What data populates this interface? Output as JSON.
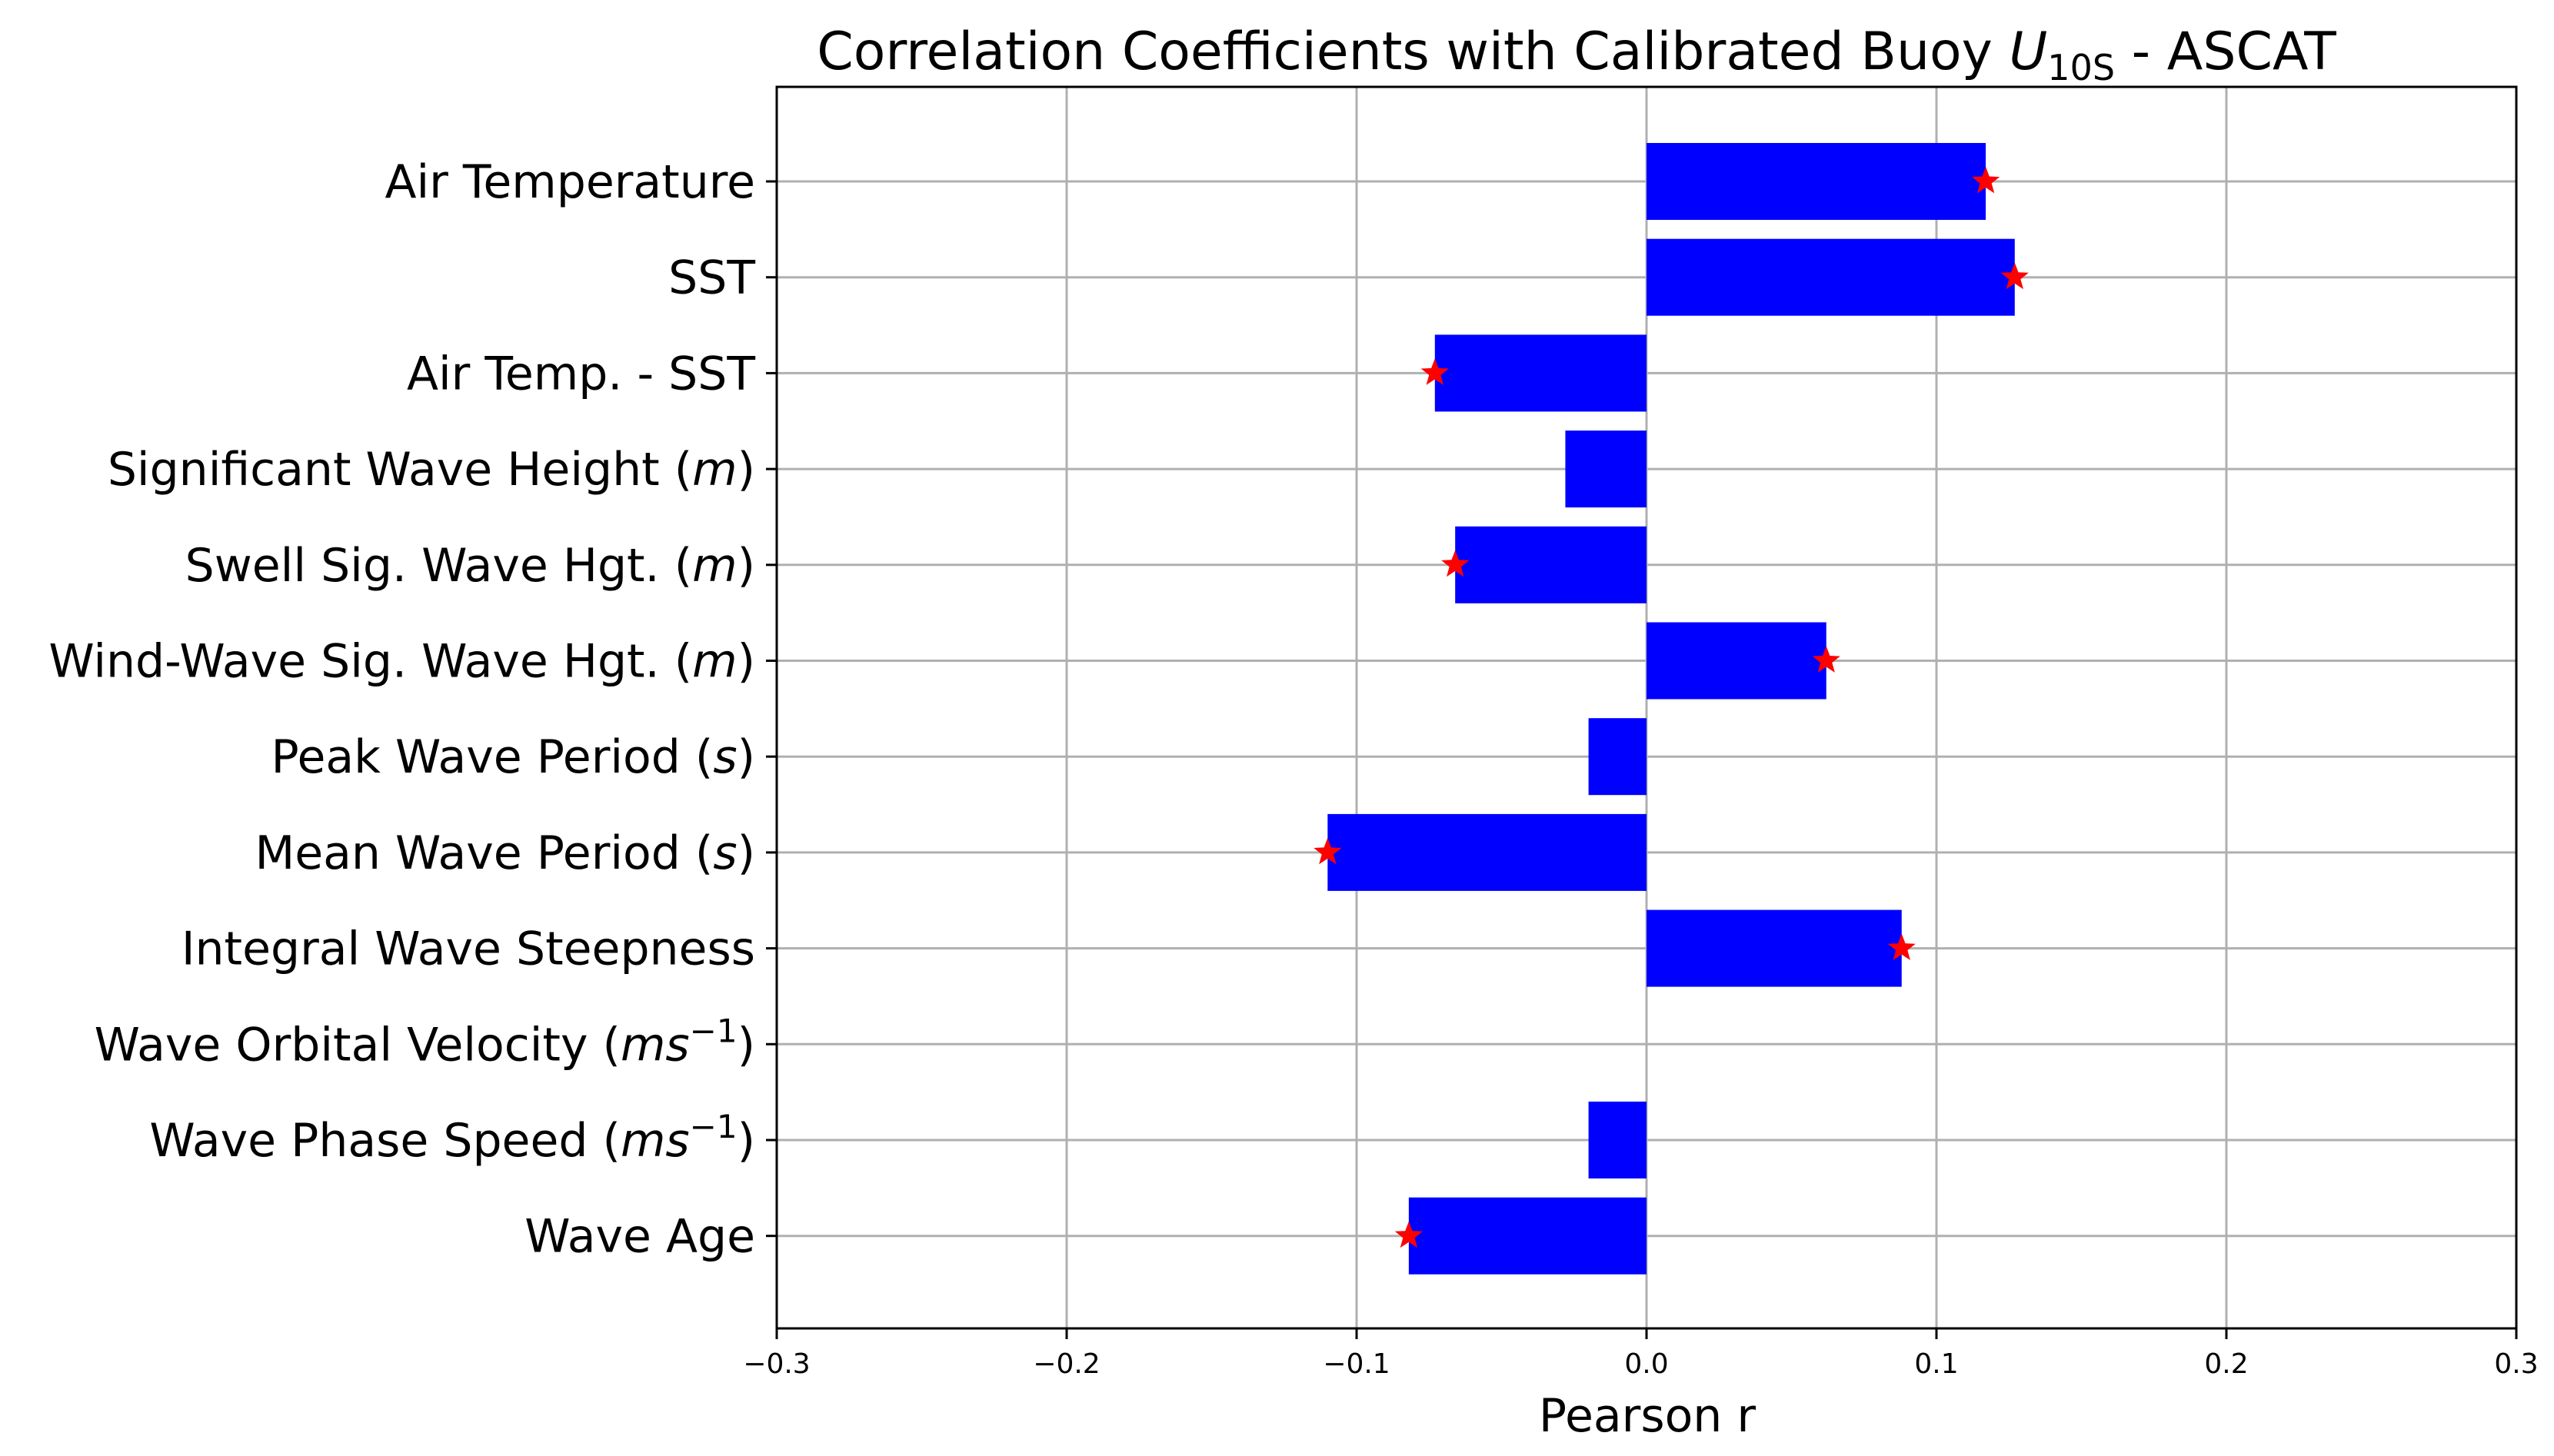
{
  "chart_data": {
    "type": "bar",
    "orientation": "horizontal",
    "title": {
      "prefix": "Correlation Coefficients with Calibrated Buoy ",
      "symbol": "U",
      "subscript": "10S",
      "suffix": " - ASCAT"
    },
    "xlabel": "Pearson r",
    "ylabel": "",
    "xlim": [
      -0.3,
      0.3
    ],
    "xticks": [
      -0.3,
      -0.2,
      -0.1,
      0.0,
      0.1,
      0.2,
      0.3
    ],
    "xtick_labels": [
      "−0.3",
      "−0.2",
      "−0.1",
      "0.0",
      "0.1",
      "0.2",
      "0.3"
    ],
    "grid": true,
    "bar_color": "#0000ff",
    "marker_color": "#ff0000",
    "marker": "star",
    "categories": [
      {
        "label": "Air Temperature",
        "value": 0.117,
        "significant": true
      },
      {
        "label": "SST",
        "value": 0.127,
        "significant": true
      },
      {
        "label": "Air Temp. - SST",
        "value": -0.073,
        "significant": true
      },
      {
        "label": "Significant Wave Height",
        "unit": "m",
        "value": -0.028,
        "significant": false
      },
      {
        "label": "Swell Sig. Wave Hgt.",
        "unit": "m",
        "value": -0.066,
        "significant": true
      },
      {
        "label": "Wind-Wave Sig. Wave Hgt.",
        "unit": "m",
        "value": 0.062,
        "significant": true
      },
      {
        "label": "Peak Wave Period",
        "unit": "s",
        "value": -0.02,
        "significant": false
      },
      {
        "label": "Mean Wave Period",
        "unit": "s",
        "value": -0.11,
        "significant": true
      },
      {
        "label": "Integral Wave Steepness",
        "value": 0.088,
        "significant": true
      },
      {
        "label": "Wave Orbital Velocity",
        "unit": "ms",
        "unit_exp": "−1",
        "value": 0.0,
        "significant": false
      },
      {
        "label": "Wave Phase Speed",
        "unit": "ms",
        "unit_exp": "−1",
        "value": -0.02,
        "significant": false
      },
      {
        "label": "Wave Age",
        "value": -0.082,
        "significant": true
      }
    ]
  }
}
